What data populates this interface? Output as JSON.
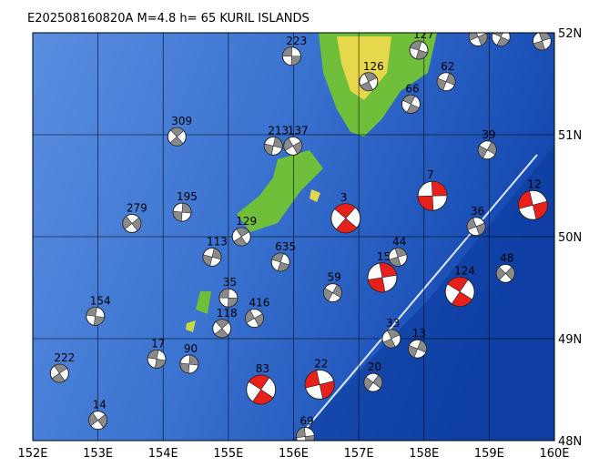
{
  "header": {
    "title": "E202508160820A  M=4.8  h=  65  KURIL ISLANDS"
  },
  "axes": {
    "lon_ticks": [
      {
        "value": 152,
        "label": "152E"
      },
      {
        "value": 153,
        "label": "153E"
      },
      {
        "value": 154,
        "label": "154E"
      },
      {
        "value": 155,
        "label": "155E"
      },
      {
        "value": 156,
        "label": "156E"
      },
      {
        "value": 157,
        "label": "157E"
      },
      {
        "value": 158,
        "label": "158E"
      },
      {
        "value": 159,
        "label": "159E"
      },
      {
        "value": 160,
        "label": "160E"
      }
    ],
    "lat_ticks": [
      {
        "value": 48,
        "label": "48N"
      },
      {
        "value": 49,
        "label": "49N"
      },
      {
        "value": 50,
        "label": "50N"
      },
      {
        "value": 51,
        "label": "51N"
      },
      {
        "value": 52,
        "label": "52N"
      }
    ],
    "lonlim": [
      152,
      160
    ],
    "latlim": [
      48,
      52
    ]
  },
  "events": [
    {
      "label": "223",
      "lon": 155.97,
      "lat": 51.77,
      "red": false
    },
    {
      "label": "309",
      "lon": 154.21,
      "lat": 50.98,
      "red": false
    },
    {
      "label": "195",
      "lon": 154.29,
      "lat": 50.24,
      "red": false
    },
    {
      "label": "279",
      "lon": 153.52,
      "lat": 50.13,
      "red": false
    },
    {
      "label": "154",
      "lon": 152.96,
      "lat": 49.22,
      "red": false
    },
    {
      "label": "222",
      "lon": 152.41,
      "lat": 48.66,
      "red": false
    },
    {
      "label": "213",
      "lon": 155.69,
      "lat": 50.89,
      "red": false
    },
    {
      "label": "137",
      "lon": 155.99,
      "lat": 50.89,
      "red": false
    },
    {
      "label": "127",
      "lon": 157.92,
      "lat": 51.83,
      "red": false
    },
    {
      "label": "126",
      "lon": 157.15,
      "lat": 51.52,
      "red": false
    },
    {
      "label": "62",
      "lon": 158.34,
      "lat": 51.52,
      "red": false
    },
    {
      "label": "57",
      "lon": 158.83,
      "lat": 51.96,
      "red": false
    },
    {
      "label": "54",
      "lon": 159.18,
      "lat": 51.96,
      "red": false
    },
    {
      "label": "28",
      "lon": 159.81,
      "lat": 51.92,
      "red": false
    },
    {
      "label": "39",
      "lon": 158.97,
      "lat": 50.85,
      "red": false
    },
    {
      "label": "12",
      "lon": 159.67,
      "lat": 50.31,
      "red": true
    },
    {
      "label": "124",
      "lon": 158.55,
      "lat": 49.46,
      "red": true
    },
    {
      "label": "15",
      "lon": 157.36,
      "lat": 49.6,
      "red": true
    },
    {
      "label": "20",
      "lon": 157.22,
      "lat": 48.57,
      "red": false
    },
    {
      "label": "69",
      "lon": 156.18,
      "lat": 48.04,
      "red": false
    },
    {
      "label": "3",
      "lon": 156.8,
      "lat": 50.18,
      "red": true
    },
    {
      "label": "7",
      "lon": 158.13,
      "lat": 50.4,
      "red": true
    },
    {
      "label": "48",
      "lon": 159.25,
      "lat": 49.64,
      "red": false
    },
    {
      "label": "35",
      "lon": 155.0,
      "lat": 49.4,
      "red": false
    },
    {
      "label": "118",
      "lon": 154.9,
      "lat": 49.1,
      "red": false
    },
    {
      "label": "90",
      "lon": 154.4,
      "lat": 48.75,
      "red": false
    },
    {
      "label": "14",
      "lon": 153.0,
      "lat": 48.2,
      "red": false
    },
    {
      "label": "17",
      "lon": 153.9,
      "lat": 48.8,
      "red": false
    },
    {
      "label": "129",
      "lon": 155.2,
      "lat": 50.0,
      "red": false
    },
    {
      "label": "113",
      "lon": 154.75,
      "lat": 49.8,
      "red": false
    },
    {
      "label": "416",
      "lon": 155.4,
      "lat": 49.2,
      "red": false
    },
    {
      "label": "635",
      "lon": 155.8,
      "lat": 49.75,
      "red": false
    },
    {
      "label": "33",
      "lon": 157.5,
      "lat": 49.0,
      "red": false
    },
    {
      "label": "13",
      "lon": 157.9,
      "lat": 48.9,
      "red": false
    },
    {
      "label": "36",
      "lon": 158.8,
      "lat": 50.1,
      "red": false
    },
    {
      "label": "66",
      "lon": 157.8,
      "lat": 51.3,
      "red": false
    },
    {
      "label": "44",
      "lon": 157.6,
      "lat": 49.8,
      "red": false
    },
    {
      "label": "59",
      "lon": 156.6,
      "lat": 49.45,
      "red": false
    },
    {
      "label": "22",
      "lon": 156.4,
      "lat": 48.55,
      "red": true
    },
    {
      "label": "83",
      "lon": 155.5,
      "lat": 48.5,
      "red": true
    }
  ]
}
